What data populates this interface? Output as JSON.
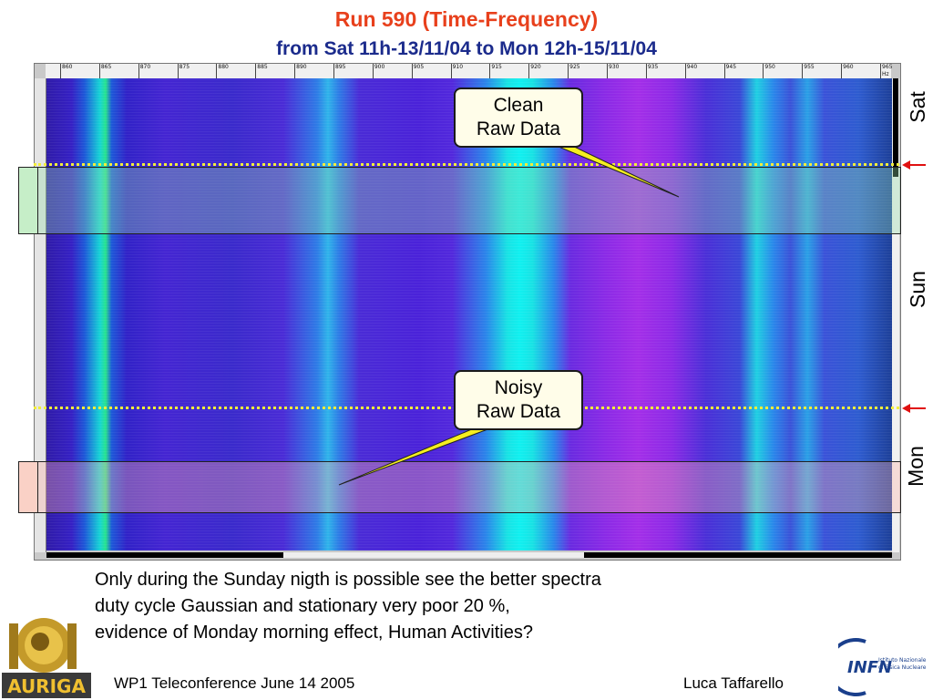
{
  "slide": {
    "title": "Run 590  (Time-Frequency)",
    "subtitle": "from Sat 11h-13/11/04 to Mon 12h-15/11/04"
  },
  "spectrogram": {
    "freq_axis_labels": [
      "860",
      "865",
      "870",
      "875",
      "880",
      "885",
      "890",
      "895",
      "900",
      "905",
      "910",
      "915",
      "920",
      "925",
      "930",
      "935",
      "940",
      "945",
      "950",
      "955",
      "960",
      "965 Hz"
    ],
    "days": [
      "Sat",
      "Sun",
      "Mon"
    ],
    "marker_color": "#e01010",
    "dotted_line_color": "#f2ee3a"
  },
  "callouts": {
    "clean": {
      "line1": "Clean",
      "line2": "Raw Data"
    },
    "noisy": {
      "line1": "Noisy",
      "line2": "Raw Data"
    }
  },
  "note": {
    "lines": [
      "Only during the Sunday nigth is possible see the better spectra",
      "duty cycle Gaussian and stationary very poor 20 %,",
      "evidence of Monday morning effect, Human Activities?"
    ]
  },
  "footer": {
    "left": "WP1 Teleconference June 14 2005",
    "right": "Luca Taffarello"
  },
  "logos": {
    "left": {
      "text": "AURIGA",
      "icon": "auriga-logo"
    },
    "right": {
      "text": "INFN",
      "subtext_1": "Istituto Nazionale",
      "subtext_2": "di Fisica Nucleare",
      "icon": "infn-logo"
    }
  }
}
